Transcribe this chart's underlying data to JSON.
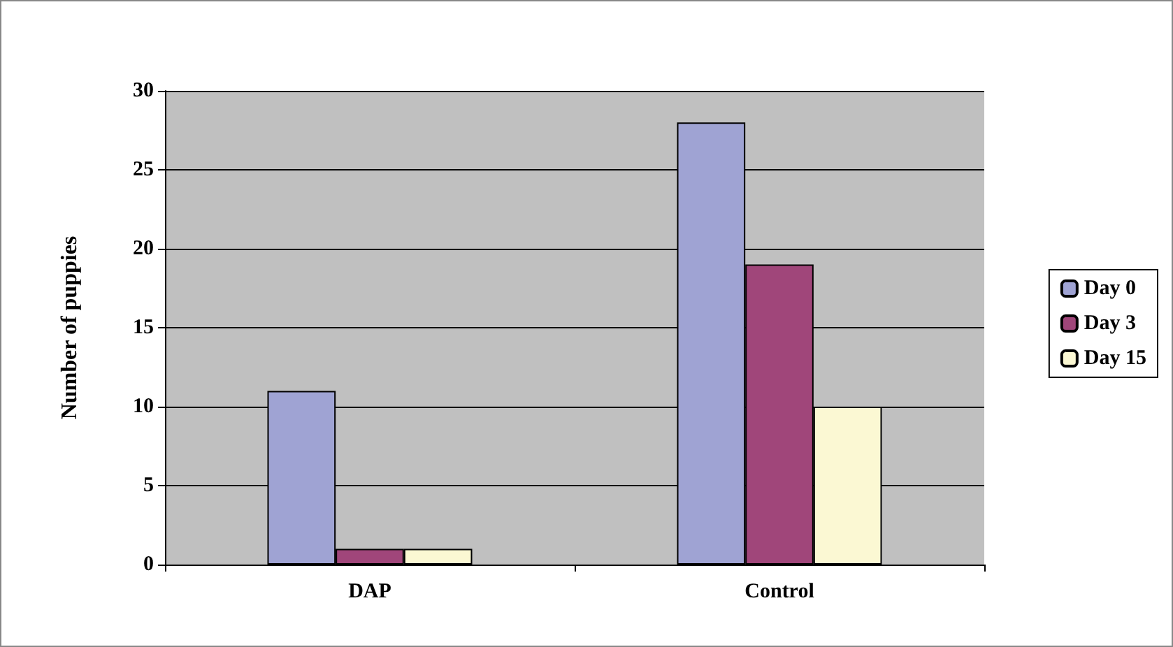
{
  "chart_data": {
    "type": "bar",
    "ylabel": "Number of puppies",
    "categories": [
      "DAP",
      "Control"
    ],
    "series": [
      {
        "name": "Day 0",
        "color": "#9fa3d3",
        "values": [
          11,
          28
        ]
      },
      {
        "name": "Day 3",
        "color": "#a0467a",
        "values": [
          1,
          19
        ]
      },
      {
        "name": "Day 15",
        "color": "#fbf8d3",
        "values": [
          1,
          10
        ]
      }
    ],
    "ylim": [
      0,
      30
    ],
    "yticks": [
      0,
      5,
      10,
      15,
      20,
      25,
      30
    ],
    "grid": "y",
    "legend": "right"
  }
}
